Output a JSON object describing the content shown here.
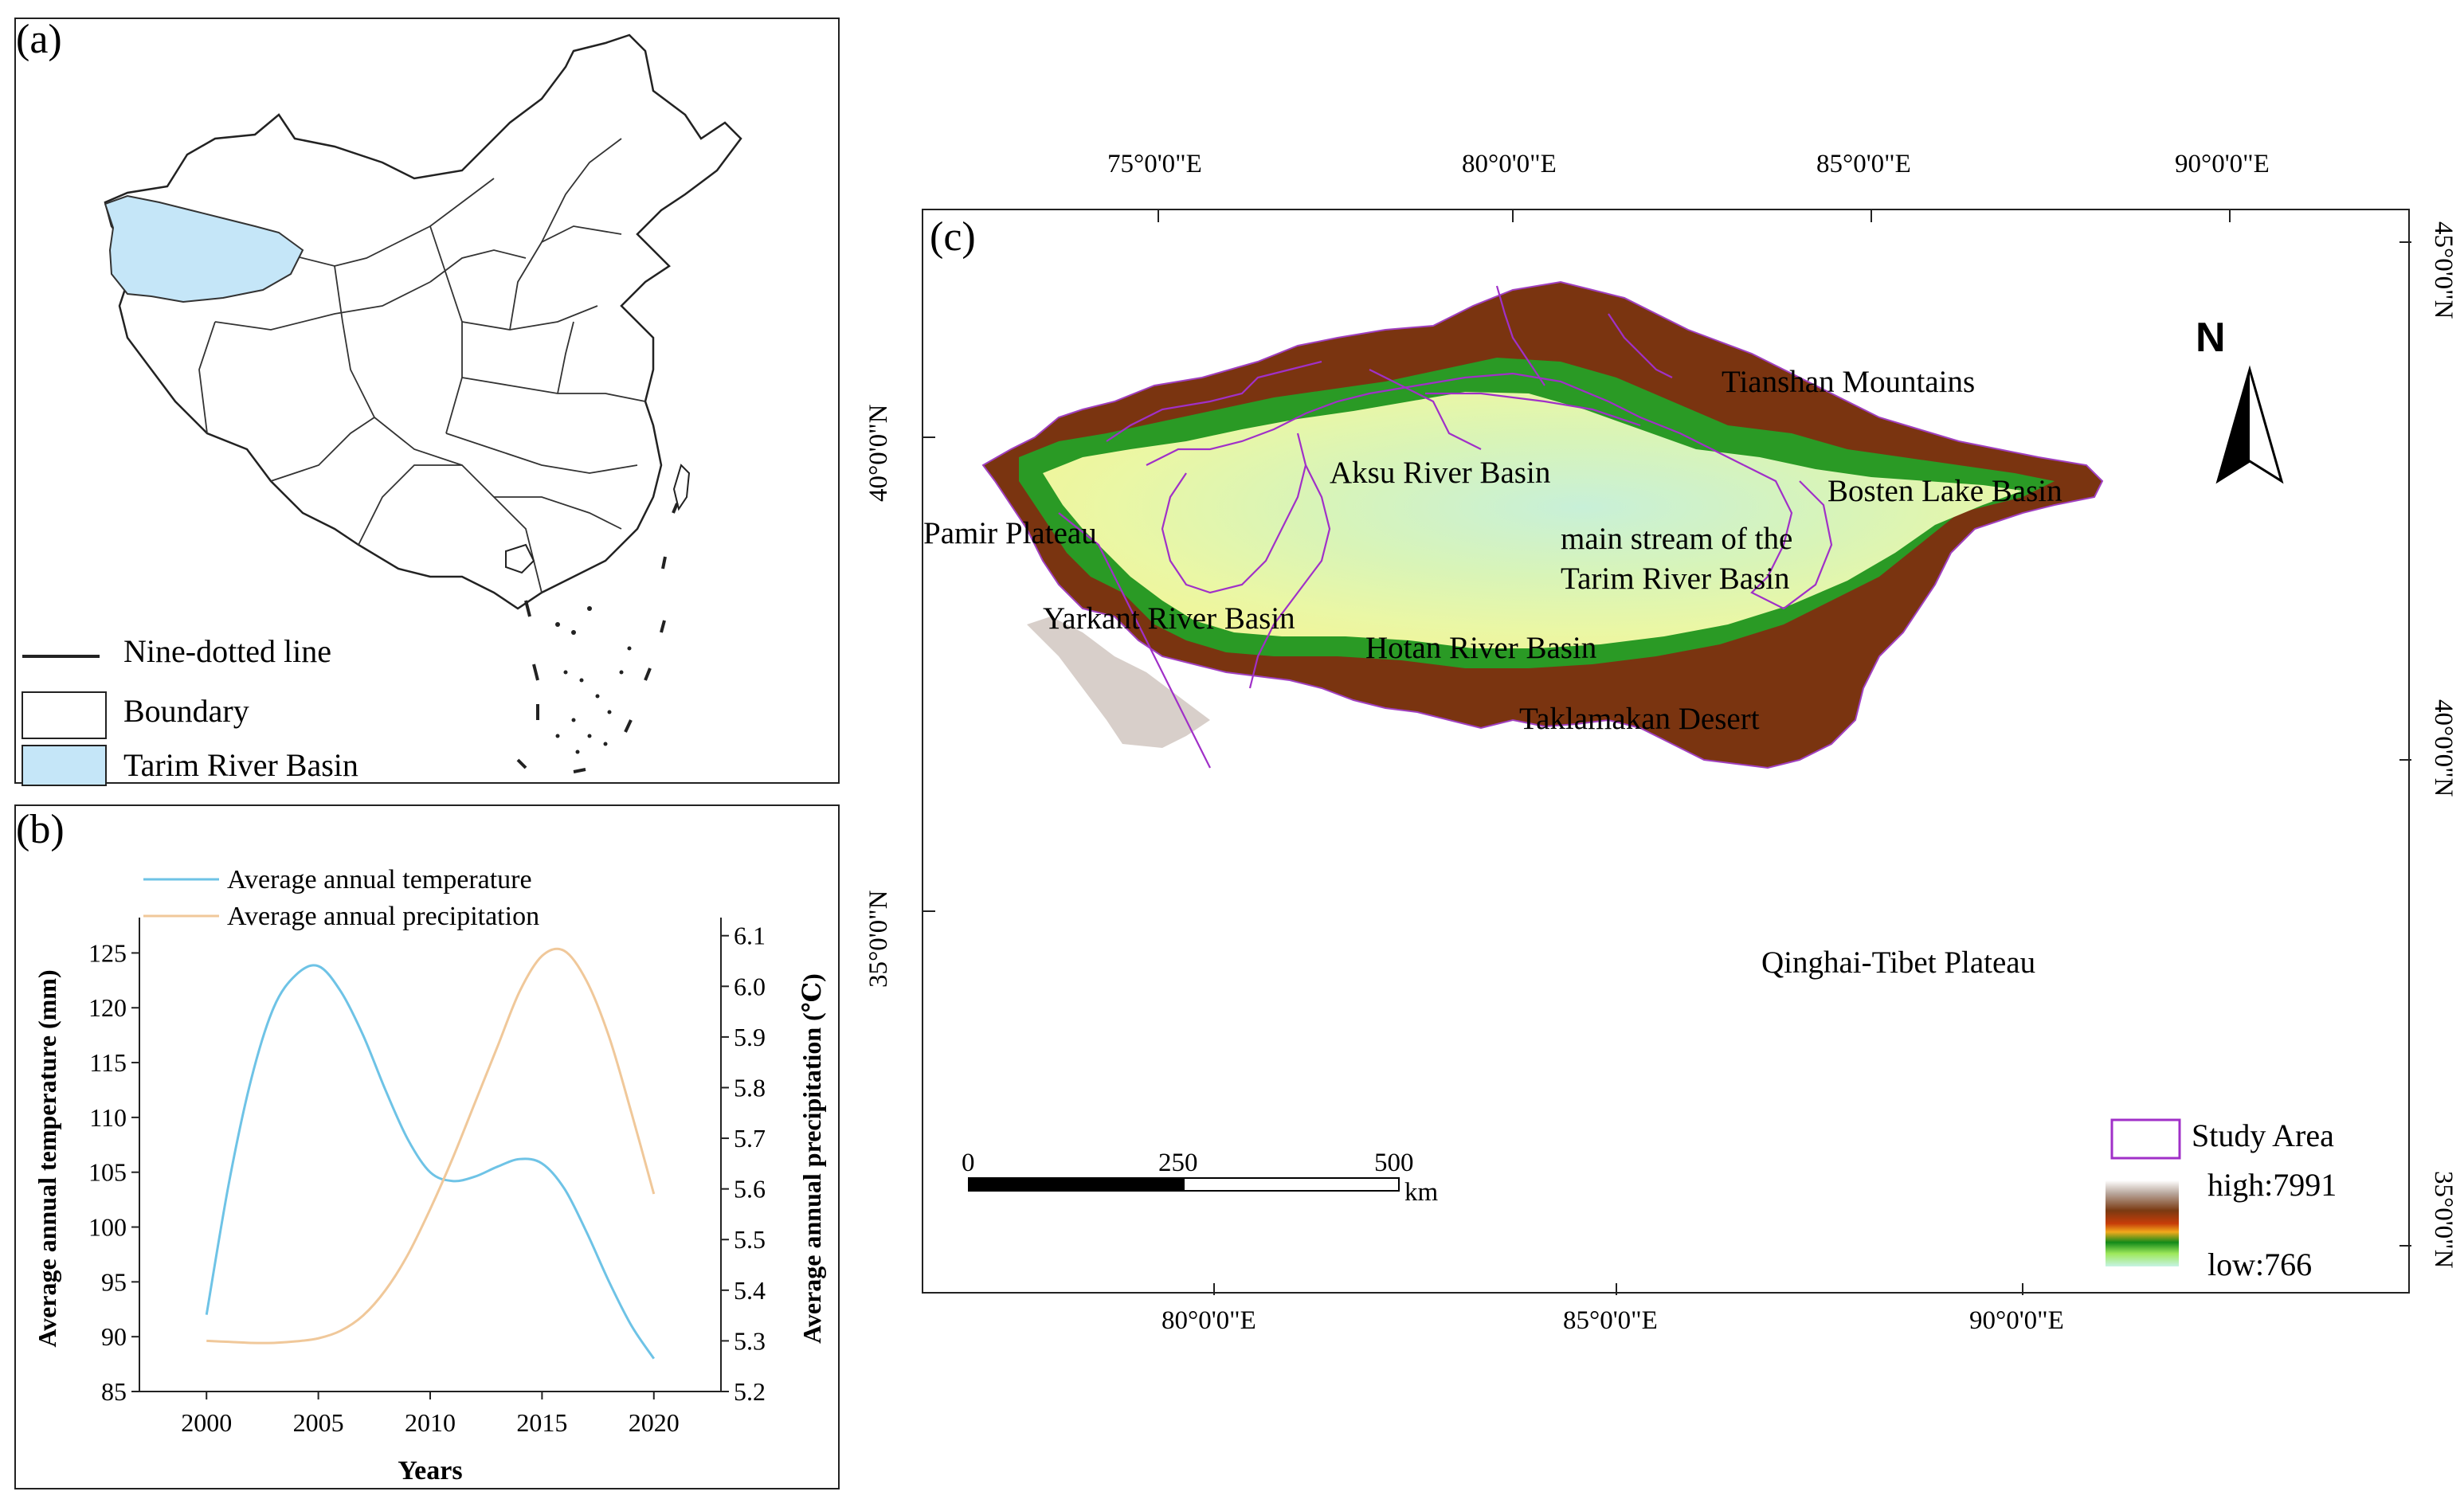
{
  "panel_a": {
    "label": "(a)",
    "legend": [
      {
        "label": "Nine-dotted line",
        "symbol": "line"
      },
      {
        "label": "Boundary",
        "symbol": "box"
      },
      {
        "label": "Tarim River Basin",
        "symbol": "fill"
      }
    ]
  },
  "panel_b": {
    "label": "(b)",
    "legend_temperature": "Average annual temperature",
    "legend_precipitation": "Average annual precipitation"
  },
  "chart_data": {
    "type": "line",
    "title": "",
    "xlabel": "Years",
    "ylabel_left": "Average annual temperature (mm)",
    "ylabel_right": "Average annual precipitation (℃)",
    "x_ticks": [
      "2000",
      "2005",
      "2010",
      "2015",
      "2020"
    ],
    "y_left_ticks": [
      "85",
      "90",
      "95",
      "100",
      "105",
      "110",
      "115",
      "120",
      "125"
    ],
    "y_right_ticks": [
      "5.2",
      "5.3",
      "5.4",
      "5.5",
      "5.6",
      "5.7",
      "5.8",
      "5.9",
      "6.0",
      "6.1"
    ],
    "xlim": [
      1997,
      2023
    ],
    "ylim_left": [
      85,
      127.5
    ],
    "ylim_right": [
      5.2,
      6.12
    ],
    "series": [
      {
        "name": "Average annual temperature",
        "axis": "left",
        "color": "#6ec3e6",
        "x": [
          2000,
          2001,
          2002,
          2003,
          2004,
          2005,
          2006,
          2007,
          2008,
          2009,
          2010,
          2011,
          2012,
          2013,
          2014,
          2015,
          2016,
          2017,
          2018,
          2019,
          2020
        ],
        "y": [
          92,
          104,
          113.5,
          120,
          123,
          123.8,
          121.5,
          117.5,
          112.5,
          108,
          105,
          104.2,
          104.6,
          105.5,
          106.2,
          105.8,
          103.5,
          99.5,
          95,
          91,
          88
        ]
      },
      {
        "name": "Average annual precipitation",
        "axis": "right",
        "color": "#f0c89a",
        "x": [
          2000,
          2001,
          2002,
          2003,
          2004,
          2005,
          2006,
          2007,
          2008,
          2009,
          2010,
          2011,
          2012,
          2013,
          2014,
          2015,
          2016,
          2017,
          2018,
          2019,
          2020
        ],
        "y": [
          5.3,
          5.298,
          5.296,
          5.296,
          5.299,
          5.305,
          5.32,
          5.35,
          5.4,
          5.47,
          5.56,
          5.66,
          5.77,
          5.88,
          5.99,
          6.06,
          6.07,
          6.01,
          5.9,
          5.75,
          5.59
        ]
      }
    ]
  },
  "panel_c": {
    "label": "(c)",
    "top_lon": [
      "75°0'0\"E",
      "80°0'0\"E",
      "85°0'0\"E",
      "90°0'0\"E"
    ],
    "bottom_lon": [
      "80°0'0\"E",
      "85°0'0\"E",
      "90°0'0\"E"
    ],
    "left_lat": [
      "40°0'0\"N",
      "35°0'0\"N"
    ],
    "right_lat": [
      "45°0'0\"N",
      "40°0'0\"N",
      "35°0'0\"N"
    ],
    "labels": {
      "tianshan": "Tianshan Mountains",
      "aksu": "Aksu River Basin",
      "bosten": "Bosten Lake Basin",
      "pamir": "Pamir Plateau",
      "mainstream_1": "main stream of the",
      "mainstream_2": "Tarim River Basin",
      "yarkant": "Yarkant River Basin",
      "hotan": "Hotan River Basin",
      "taklamakan": "Taklamakan Desert",
      "qinghai": "Qinghai-Tibet Plateau"
    },
    "north": "N",
    "scale": {
      "ticks": [
        "0",
        "250",
        "500"
      ],
      "unit": "km"
    },
    "legend": {
      "study_area": "Study Area",
      "high": "high:7991",
      "low": "low:766"
    }
  }
}
